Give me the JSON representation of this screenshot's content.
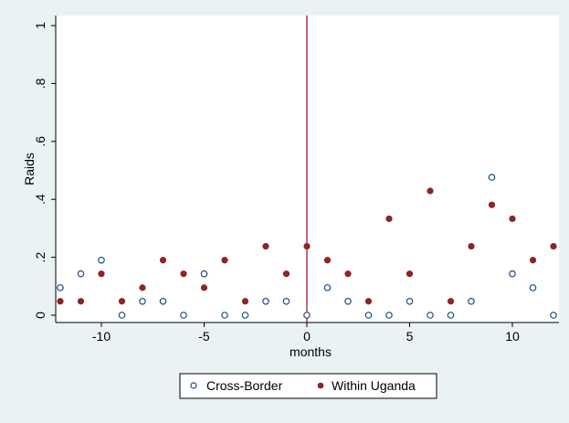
{
  "chart_data": {
    "type": "scatter",
    "title": "",
    "xlabel": "months",
    "ylabel": "Raids",
    "xlim": [
      -12.3,
      12.3
    ],
    "ylim": [
      -0.02,
      1.03
    ],
    "x_ticks": [
      -10,
      -5,
      0,
      5,
      10
    ],
    "x_tick_labels": [
      "-10",
      "-5",
      "0",
      "5",
      "10"
    ],
    "y_ticks": [
      0,
      0.2,
      0.4,
      0.6,
      0.8,
      1
    ],
    "y_tick_labels": [
      "0",
      ".2",
      ".4",
      ".6",
      ".8",
      "1"
    ],
    "reference_line": {
      "x": 0,
      "color": "#a0183a"
    },
    "grid": false,
    "legend_position": "bottom",
    "colors": {
      "background": "#eaf2f3",
      "plot_area": "#ffffff",
      "cross_border": "#1a4d87",
      "within_uganda": "#8e2424"
    },
    "series": [
      {
        "name": "Cross-Border",
        "marker": "hollow-circle",
        "x": [
          -12,
          -11,
          -10,
          -9,
          -8,
          -7,
          -6,
          -5,
          -4,
          -3,
          -2,
          -1,
          0,
          1,
          2,
          3,
          4,
          5,
          6,
          7,
          8,
          9,
          10,
          11,
          12
        ],
        "y": [
          0.095,
          0.143,
          0.19,
          0,
          0.048,
          0.048,
          0,
          0.143,
          0,
          0,
          0.048,
          0.048,
          0,
          0.095,
          0.048,
          0,
          0,
          0.048,
          0,
          0,
          0.048,
          0.476,
          0.143,
          0.095,
          0
        ]
      },
      {
        "name": "Within Uganda",
        "marker": "filled-circle",
        "x": [
          -12,
          -11,
          -10,
          -9,
          -8,
          -7,
          -6,
          -5,
          -4,
          -3,
          -2,
          -1,
          0,
          1,
          2,
          3,
          4,
          5,
          6,
          7,
          8,
          9,
          10,
          11,
          12
        ],
        "y": [
          0.048,
          0.048,
          0.143,
          0.048,
          0.095,
          0.19,
          0.143,
          0.095,
          0.19,
          0.048,
          0.238,
          0.143,
          0.238,
          0.19,
          0.143,
          0.048,
          0.333,
          0.143,
          0.429,
          0.048,
          0.238,
          0.381,
          0.333,
          0.19,
          0.238
        ]
      }
    ]
  }
}
